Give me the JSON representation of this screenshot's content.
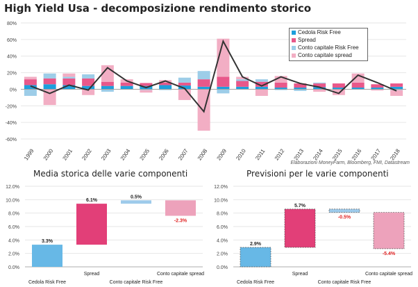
{
  "title": "High Yield Usa - decomposizione rendimento storico",
  "source_note": "Elaborazioni MoneyFarm, Bloomberg, FMI, Datastream",
  "colors": {
    "cedola": "#1e9fdc",
    "spread": "#e8588a",
    "conto_rf": "#9dcde8",
    "conto_spread": "#f2aec4",
    "line": "#333333",
    "wf_cedola": "#67b8e6",
    "wf_spread": "#e23f78",
    "wf_conto_rf": "#9ecbeb",
    "wf_conto_spread": "#eda2bb",
    "negative_label": "#e02020"
  },
  "chart_data": [
    {
      "type": "bar",
      "stacked": true,
      "title": "",
      "categories": [
        "1999",
        "2000",
        "2001",
        "2002",
        "2003",
        "2004",
        "2005",
        "2006",
        "2007",
        "2008",
        "2009",
        "2010",
        "2011",
        "2012",
        "2013",
        "2014",
        "2015",
        "2016",
        "2017",
        "2018"
      ],
      "ylim": [
        -0.6,
        0.8
      ],
      "yticks": [
        "-60%",
        "-40%",
        "-20%",
        "0%",
        "20%",
        "40%",
        "60%",
        "80%"
      ],
      "legend_position": "top-right",
      "series": [
        {
          "name": "Cedola Risk Free",
          "key": "cedola",
          "values": [
            0.05,
            0.06,
            0.05,
            0.04,
            0.04,
            0.04,
            0.04,
            0.05,
            0.045,
            0.03,
            0.03,
            0.03,
            0.03,
            0.02,
            0.02,
            0.025,
            0.02,
            0.02,
            0.02,
            0.03
          ]
        },
        {
          "name": "Spread",
          "key": "spread",
          "values": [
            0.07,
            0.07,
            0.08,
            0.09,
            0.05,
            0.04,
            0.035,
            0.03,
            0.035,
            0.09,
            0.12,
            0.07,
            0.06,
            0.06,
            0.05,
            0.045,
            0.05,
            0.06,
            0.04,
            0.04
          ]
        },
        {
          "name": "Conto capitale Risk Free",
          "key": "conto_rf",
          "values": [
            -0.08,
            0.06,
            0.02,
            0.05,
            -0.03,
            0.0,
            -0.01,
            -0.01,
            0.06,
            0.1,
            -0.05,
            0.02,
            0.03,
            -0.01,
            -0.02,
            0.01,
            0.0,
            0.0,
            -0.005,
            -0.01
          ]
        },
        {
          "name": "Conto capitale spread",
          "key": "conto_spread",
          "values": [
            0.03,
            -0.19,
            0.04,
            -0.07,
            0.2,
            0.04,
            -0.03,
            0.03,
            -0.13,
            -0.5,
            0.46,
            0.03,
            -0.08,
            0.08,
            0.0,
            -0.03,
            -0.07,
            0.11,
            -0.01,
            -0.07
          ]
        }
      ],
      "total": {
        "values": [
          0.04,
          -0.05,
          0.05,
          -0.01,
          0.26,
          0.1,
          0.02,
          0.1,
          0.01,
          -0.27,
          0.58,
          0.15,
          0.04,
          0.15,
          0.07,
          0.025,
          -0.05,
          0.17,
          0.08,
          -0.02
        ]
      }
    },
    {
      "type": "bar",
      "subtype": "waterfall",
      "title": "Media storica delle varie componenti",
      "categories": [
        "Cedola Risk Free",
        "Spread",
        "Conto capitale Risk Free",
        "Conto capitale spread"
      ],
      "values": [
        0.033,
        0.061,
        0.005,
        -0.023
      ],
      "value_labels": [
        "3.3%",
        "6.1%",
        "0.5%",
        "-2.3%"
      ],
      "ylim": [
        0,
        0.12
      ],
      "yticks": [
        "0.0%",
        "2.0%",
        "4.0%",
        "6.0%",
        "8.0%",
        "10.0%",
        "12.0%"
      ]
    },
    {
      "type": "bar",
      "subtype": "waterfall",
      "title": "Previsioni per le varie componenti",
      "categories": [
        "Cedola Risk Free",
        "Spread",
        "Conto capitale Risk Free",
        "Conto capitale spread"
      ],
      "values": [
        0.029,
        0.057,
        -0.005,
        -0.054
      ],
      "value_labels": [
        "2.9%",
        "5.7%",
        "-0.5%",
        "-5.4%"
      ],
      "ylim": [
        0,
        0.12
      ],
      "yticks": [
        "0.0%",
        "2.0%",
        "4.0%",
        "6.0%",
        "8.0%",
        "10.0%",
        "12.0%"
      ]
    }
  ]
}
